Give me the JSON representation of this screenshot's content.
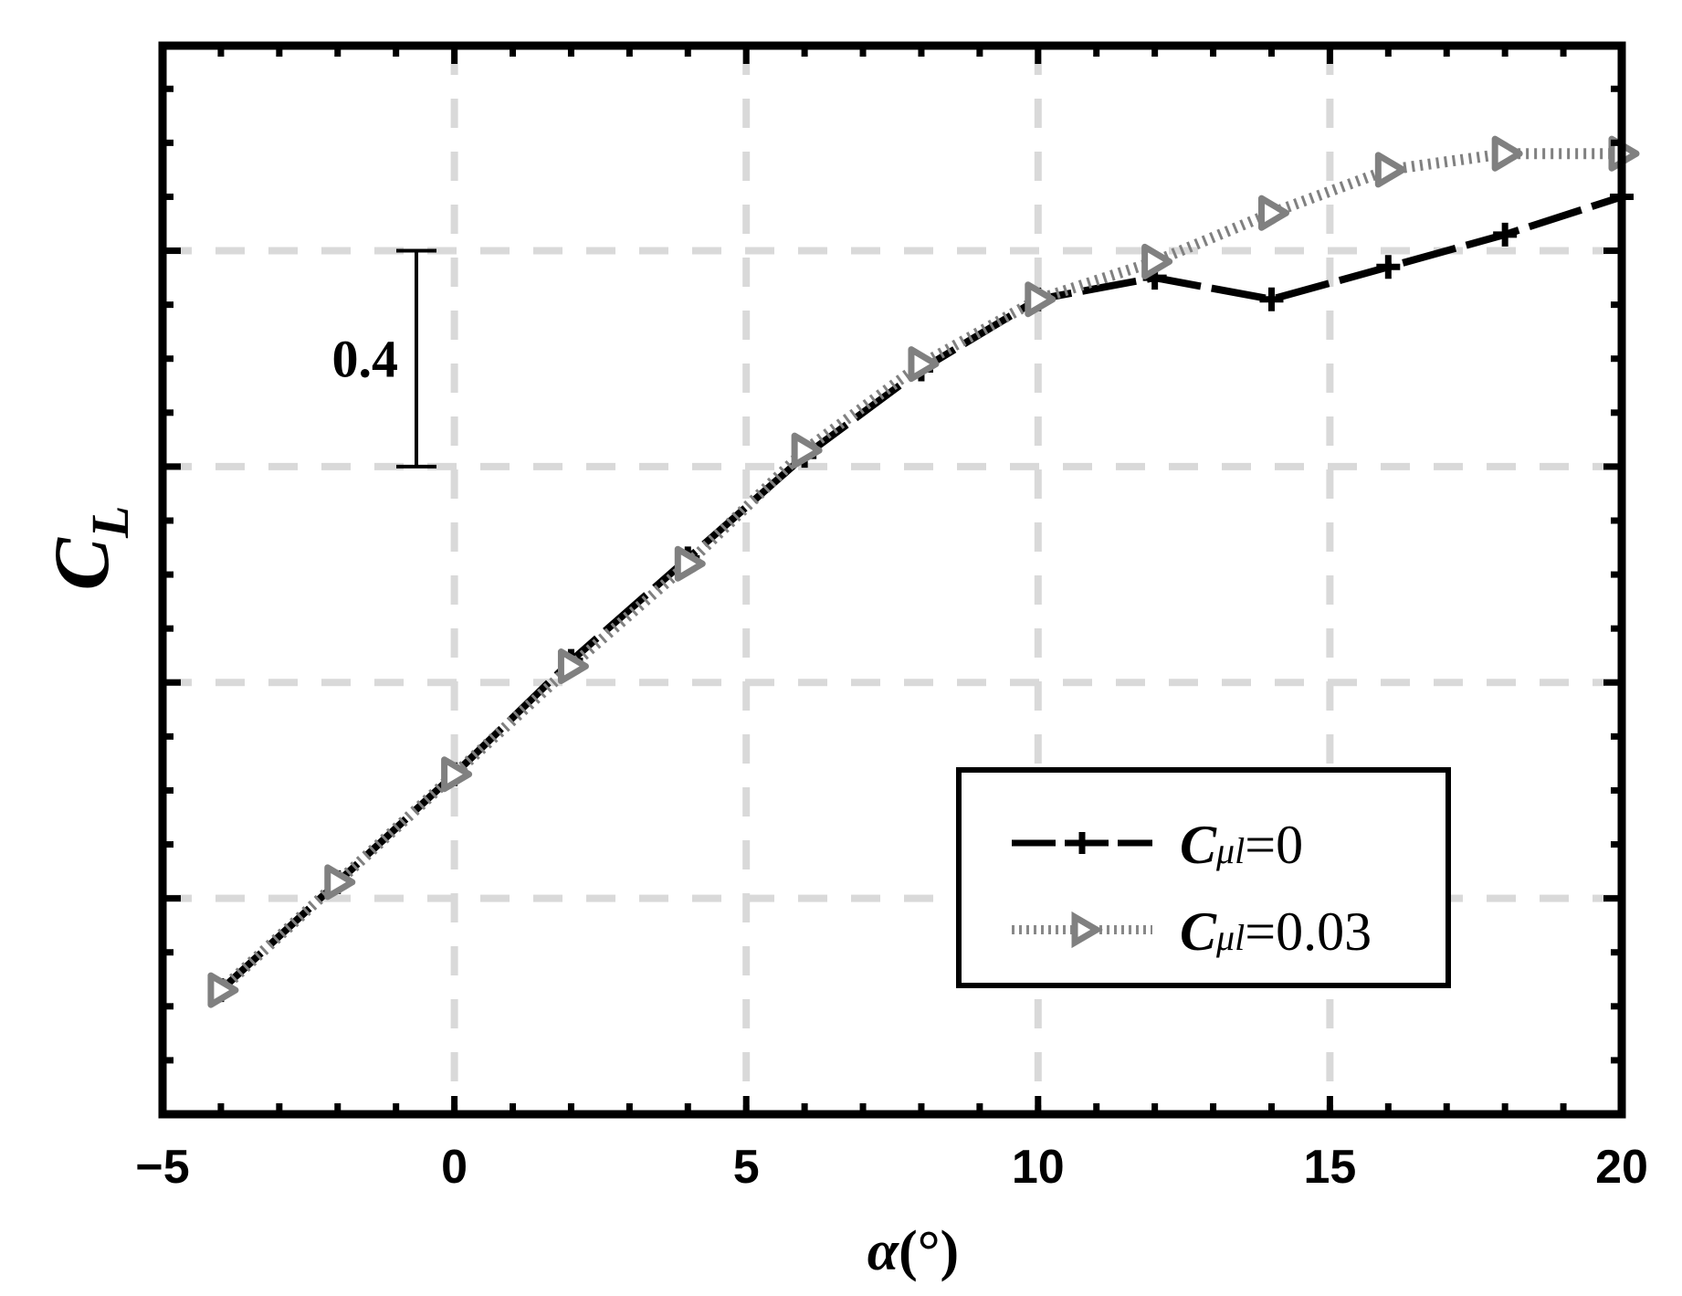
{
  "chart_data": {
    "type": "line",
    "xlabel_symbol": "α",
    "xlabel_unit": "(°)",
    "ylabel_main": "C",
    "ylabel_sub": "L",
    "xlim": [
      -5,
      20
    ],
    "xticks": [
      -5,
      0,
      5,
      10,
      15,
      20
    ],
    "xtick_labels": [
      "−5",
      "0",
      "5",
      "10",
      "15",
      "20"
    ],
    "grid": true,
    "scale_bar": {
      "label": "0.4",
      "value": 0.4
    },
    "legend_position": "lower-right",
    "x": [
      -4,
      -2,
      0,
      2,
      4,
      6,
      8,
      10,
      12,
      14,
      16,
      18,
      20
    ],
    "series": [
      {
        "name_main": "C",
        "name_sub": "μl",
        "name_value": "=0",
        "marker": "plus",
        "line": "dashed",
        "color": "#000000",
        "values": [
          -0.97,
          -0.77,
          -0.57,
          -0.36,
          -0.17,
          0.02,
          0.18,
          0.31,
          0.35,
          0.31,
          0.37,
          0.43,
          0.5
        ]
      },
      {
        "name_main": "C",
        "name_sub": "μl",
        "name_value": "=0.03",
        "marker": "triangle-right",
        "line": "dotted",
        "color": "#808080",
        "values": [
          -0.97,
          -0.77,
          -0.57,
          -0.37,
          -0.18,
          0.03,
          0.19,
          0.31,
          0.38,
          0.47,
          0.55,
          0.58,
          0.58
        ]
      }
    ]
  }
}
